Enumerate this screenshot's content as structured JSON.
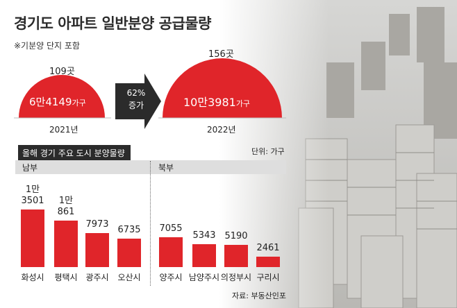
{
  "title": "경기도 아파트 일반분양 공급물량",
  "subtitle": "※기분양 단지 포함",
  "summary": {
    "left": {
      "complexes": "109곳",
      "value_main": "6만4149",
      "value_unit": "가구",
      "year": "2021년"
    },
    "right": {
      "complexes": "156곳",
      "value_main": "10만3981",
      "value_unit": "가구",
      "year": "2022년"
    },
    "arrow": {
      "line1": "62%",
      "line2": "증가"
    }
  },
  "section": {
    "title": "올해 경기 주요 도시 분양물량",
    "unit": "단위: 가구",
    "region_south": "남부",
    "region_north": "북부"
  },
  "source": "자료: 부동산인포",
  "colors": {
    "accent_red": "#e0252a",
    "dark": "#2b2b2b"
  },
  "chart_data": [
    {
      "type": "bar",
      "title": "경기도 아파트 일반분양 공급물량",
      "categories": [
        "2021년",
        "2022년"
      ],
      "values": [
        64149,
        103981
      ],
      "complexes": [
        109,
        156
      ],
      "labels": [
        "6만4149가구",
        "10만3981가구"
      ]
    },
    {
      "type": "bar",
      "title": "올해 경기 주요 도시 분양물량",
      "unit": "가구",
      "groups": [
        {
          "name": "남부",
          "categories": [
            "화성시",
            "평택시",
            "광주시",
            "오산시"
          ],
          "values": [
            13501,
            10861,
            7973,
            6735
          ],
          "labels": [
            [
              "1만",
              "3501"
            ],
            [
              "1만",
              "861"
            ],
            [
              "7973"
            ],
            [
              "6735"
            ]
          ]
        },
        {
          "name": "북부",
          "categories": [
            "양주시",
            "남양주시",
            "의정부시",
            "구리시"
          ],
          "values": [
            7055,
            5343,
            5190,
            2461
          ],
          "labels": [
            [
              "7055"
            ],
            [
              "5343"
            ],
            [
              "5190"
            ],
            [
              "2461"
            ]
          ]
        }
      ]
    }
  ]
}
